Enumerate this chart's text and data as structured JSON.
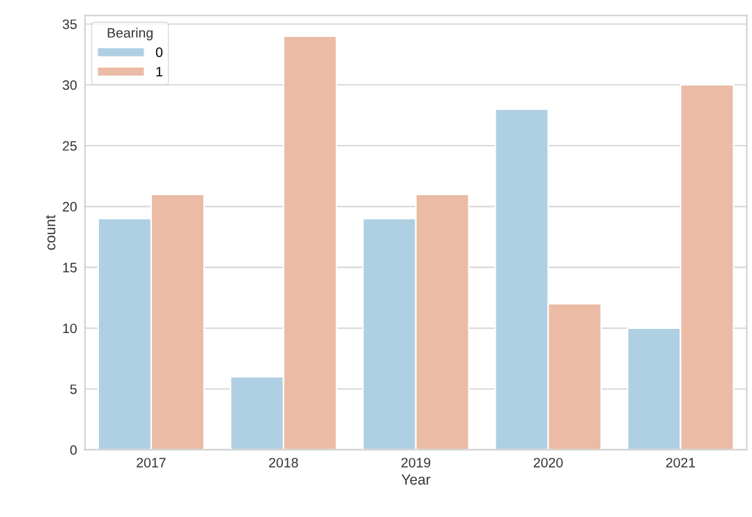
{
  "chart_data": {
    "type": "bar",
    "xlabel": "Year",
    "ylabel": "count",
    "categories": [
      "2017",
      "2018",
      "2019",
      "2020",
      "2021"
    ],
    "series": [
      {
        "name": "0",
        "color": "#afcfe2",
        "values": [
          19,
          6,
          19,
          28,
          10
        ]
      },
      {
        "name": "1",
        "color": "#ebbba5",
        "values": [
          21,
          34,
          21,
          12,
          30
        ]
      }
    ],
    "legend_title": "Bearing",
    "legend": "top left",
    "ylim": [
      0,
      35.7
    ],
    "yticks": [
      0,
      5,
      10,
      15,
      20,
      25,
      30,
      35
    ],
    "grid": "y"
  }
}
